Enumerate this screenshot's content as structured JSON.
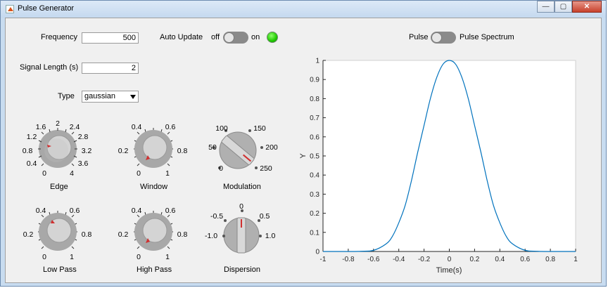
{
  "window": {
    "title": "Pulse Generator",
    "controls": {
      "minimize": "—",
      "maximize": "▢",
      "close": "✕"
    }
  },
  "controls": {
    "frequency": {
      "label": "Frequency",
      "value": "500"
    },
    "auto_update": {
      "label": "Auto Update",
      "off": "off",
      "on": "on"
    },
    "signal_length": {
      "label": "Signal Length (s)",
      "value": "2"
    },
    "type": {
      "label": "Type",
      "value": "gaussian"
    },
    "plot_toggle": {
      "left": "Pulse",
      "right": "Pulse Spectrum"
    }
  },
  "knobs": {
    "edge": {
      "label": "Edge",
      "ticks": [
        "0",
        "0.4",
        "0.8",
        "1.2",
        "1.6",
        "2",
        "2.4",
        "2.8",
        "3.2",
        "3.6",
        "4"
      ]
    },
    "window": {
      "label": "Window",
      "ticks": [
        "0",
        "0.2",
        "0.4",
        "0.6",
        "0.8",
        "1"
      ]
    },
    "low_pass": {
      "label": "Low Pass",
      "ticks": [
        "0",
        "0.2",
        "0.4",
        "0.6",
        "0.8",
        "1"
      ]
    },
    "high_pass": {
      "label": "High Pass",
      "ticks": [
        "0",
        "0.2",
        "0.4",
        "0.6",
        "0.8",
        "1"
      ]
    }
  },
  "switches": {
    "modulation": {
      "label": "Modulation",
      "options": [
        "0",
        "50",
        "100",
        "150",
        "200",
        "250"
      ]
    },
    "dispersion": {
      "label": "Dispersion",
      "options": [
        "-1.0",
        "-0.5",
        "0",
        "0.5",
        "1.0"
      ]
    }
  },
  "chart_data": {
    "type": "line",
    "title": "",
    "xlabel": "Time(s)",
    "ylabel": "Y",
    "xlim": [
      -1,
      1
    ],
    "ylim": [
      0,
      1
    ],
    "xticks": [
      "-1",
      "-0.8",
      "-0.6",
      "-0.4",
      "-0.2",
      "0",
      "0.2",
      "0.4",
      "0.6",
      "0.8",
      "1"
    ],
    "yticks": [
      "0",
      "0.1",
      "0.2",
      "0.3",
      "0.4",
      "0.5",
      "0.6",
      "0.7",
      "0.8",
      "0.9",
      "1"
    ],
    "grid": false,
    "series": [
      {
        "color": "#0072bd",
        "x": [
          -1,
          -0.8,
          -0.7,
          -0.6,
          -0.5,
          -0.45,
          -0.4,
          -0.35,
          -0.3,
          -0.25,
          -0.2,
          -0.15,
          -0.1,
          -0.05,
          0,
          0.05,
          0.1,
          0.15,
          0.2,
          0.25,
          0.3,
          0.35,
          0.4,
          0.45,
          0.5,
          0.6,
          0.7,
          0.8,
          1
        ],
        "y": [
          0,
          0,
          0.001,
          0.006,
          0.04,
          0.08,
          0.15,
          0.24,
          0.37,
          0.52,
          0.66,
          0.8,
          0.91,
          0.98,
          1,
          0.98,
          0.91,
          0.8,
          0.66,
          0.52,
          0.37,
          0.24,
          0.15,
          0.08,
          0.04,
          0.006,
          0.001,
          0,
          0
        ]
      }
    ]
  }
}
